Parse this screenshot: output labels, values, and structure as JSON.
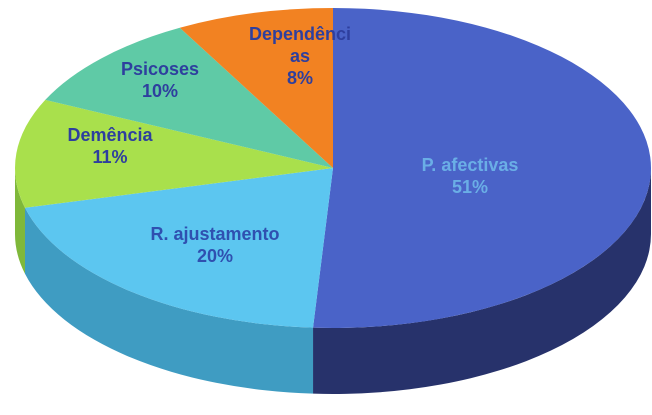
{
  "chart_data": {
    "type": "pie",
    "three_d": true,
    "categories": [
      "P. afectivas",
      "R. ajustamento",
      "Demência",
      "Psicoses",
      "Dependências"
    ],
    "values": [
      51,
      20,
      11,
      10,
      8
    ],
    "value_labels": [
      "51%",
      "20%",
      "11%",
      "10%",
      "8%"
    ],
    "colors": [
      "#4a63c8",
      "#5cc6f0",
      "#a9e04c",
      "#5fcaa6",
      "#f28222"
    ],
    "side_colors": [
      "#27326b",
      "#3f9cc2",
      "#7fb83a",
      "#44a283",
      "#c0621a"
    ]
  }
}
